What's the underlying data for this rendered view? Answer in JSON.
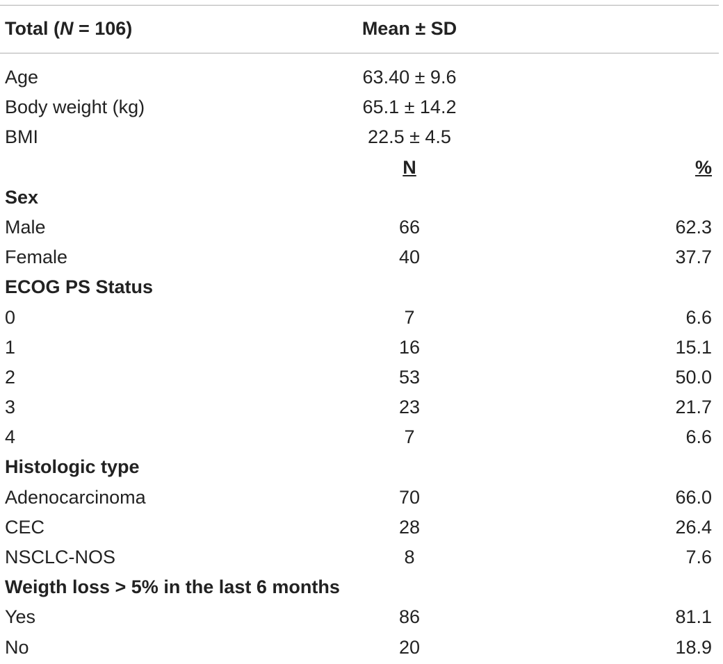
{
  "header": {
    "col1_prefix": "Total (",
    "col1_italic": "N",
    "col1_suffix": " = 106)",
    "col2": "Mean ± SD"
  },
  "summary_rows": [
    {
      "label": "Age",
      "value": "63.40 ± 9.6"
    },
    {
      "label": "Body weight (kg)",
      "value": "65.1 ± 14.2"
    },
    {
      "label": "BMI",
      "value": "22.5 ± 4.5"
    }
  ],
  "count_header": {
    "n": "N",
    "pct": "%"
  },
  "sex": {
    "title": "Sex",
    "rows": [
      {
        "label": "Male",
        "n": "66",
        "pct": "62.3"
      },
      {
        "label": "Female",
        "n": "40",
        "pct": "37.7"
      }
    ]
  },
  "ecog": {
    "title": "ECOG PS Status",
    "rows": [
      {
        "label": "0",
        "n": "7",
        "pct": "6.6"
      },
      {
        "label": "1",
        "n": "16",
        "pct": "15.1"
      },
      {
        "label": "2",
        "n": "53",
        "pct": "50.0"
      },
      {
        "label": "3",
        "n": "23",
        "pct": "21.7"
      },
      {
        "label": "4",
        "n": "7",
        "pct": "6.6"
      }
    ]
  },
  "histology": {
    "title": "Histologic type",
    "rows": [
      {
        "label": "Adenocarcinoma",
        "n": "70",
        "pct": "66.0"
      },
      {
        "label": "CEC",
        "n": "28",
        "pct": "26.4"
      },
      {
        "label": "NSCLC-NOS",
        "n": "8",
        "pct": "7.6"
      }
    ]
  },
  "weight_loss": {
    "title": "Weigth loss > 5% in the last 6 months",
    "rows": [
      {
        "label": "Yes",
        "n": "86",
        "pct": "81.1"
      },
      {
        "label": "No",
        "n": "20",
        "pct": "18.9"
      }
    ]
  }
}
